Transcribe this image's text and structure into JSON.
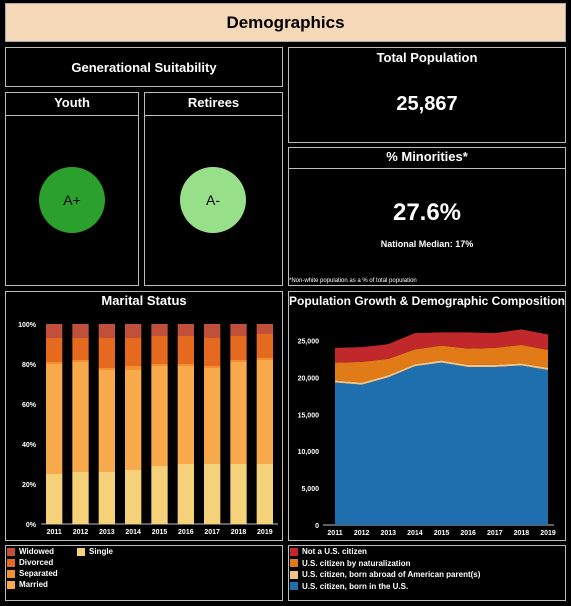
{
  "header": {
    "title": "Demographics"
  },
  "generational": {
    "title": "Generational Suitability",
    "youth": {
      "label": "Youth",
      "grade": "A+",
      "color": "#2ca02c"
    },
    "retirees": {
      "label": "Retirees",
      "grade": "A-",
      "color": "#98df8a"
    }
  },
  "population": {
    "title": "Total  Population",
    "value": "25,867"
  },
  "minorities": {
    "title": "% Minorities*",
    "value": "27.6%",
    "median": "National Median: 17%",
    "footnote": "*Non-white population as a % of total population"
  },
  "marital": {
    "title": "Marital Status",
    "legend": [
      {
        "label": "Widowed",
        "color": "#c0503a"
      },
      {
        "label": "Single",
        "color": "#f5d27a"
      },
      {
        "label": "Divorced",
        "color": "#e5691e"
      },
      {
        "label": "Separated",
        "color": "#f2902f"
      },
      {
        "label": "Married",
        "color": "#f8a94b"
      }
    ]
  },
  "growth": {
    "title": "Population Growth & Demographic Composition",
    "legend": [
      {
        "label": "Not a U.S. citizen",
        "color": "#c0282b"
      },
      {
        "label": "U.S. citizen by naturalization",
        "color": "#e07b18"
      },
      {
        "label": "U.S. citizen, born abroad of American parent(s)",
        "color": "#f2c28a"
      },
      {
        "label": "U.S. citizen, born in the U.S.",
        "color": "#1f6fae"
      }
    ]
  },
  "chart_data": [
    {
      "type": "bar",
      "title": "Marital Status",
      "stacked": true,
      "percent": true,
      "categories": [
        "2011",
        "2012",
        "2013",
        "2014",
        "2015",
        "2016",
        "2017",
        "2018",
        "2019"
      ],
      "yticks": [
        "0%",
        "20%",
        "40%",
        "60%",
        "80%",
        "100%"
      ],
      "ylim": [
        0,
        100
      ],
      "series": [
        {
          "name": "Single",
          "color": "#f5d27a",
          "values": [
            25,
            26,
            26,
            27,
            29,
            30,
            30,
            30,
            30
          ]
        },
        {
          "name": "Married",
          "color": "#f8a94b",
          "values": [
            55,
            55,
            51,
            50,
            50,
            49,
            48,
            51,
            52
          ]
        },
        {
          "name": "Separated",
          "color": "#f2902f",
          "values": [
            1,
            1,
            1,
            2,
            1,
            1,
            1,
            1,
            1
          ]
        },
        {
          "name": "Divorced",
          "color": "#e5691e",
          "values": [
            12,
            11,
            15,
            14,
            14,
            14,
            14,
            12,
            12
          ]
        },
        {
          "name": "Widowed",
          "color": "#c0503a",
          "values": [
            7,
            7,
            7,
            7,
            6,
            6,
            7,
            6,
            5
          ]
        }
      ]
    },
    {
      "type": "area",
      "title": "Population Growth & Demographic Composition",
      "stacked": true,
      "x": [
        "2011",
        "2012",
        "2013",
        "2014",
        "2015",
        "2016",
        "2017",
        "2018",
        "2019"
      ],
      "yticks": [
        "0",
        "5,000",
        "10,000",
        "15,000",
        "20,000",
        "25,000"
      ],
      "ylim": [
        0,
        27500
      ],
      "series": [
        {
          "name": "U.S. citizen, born in the U.S.",
          "color": "#1f6fae",
          "values": [
            19300,
            19000,
            20000,
            21500,
            22000,
            21400,
            21400,
            21600,
            21000
          ]
        },
        {
          "name": "U.S. citizen, born abroad of American parent(s)",
          "color": "#f2c28a",
          "values": [
            300,
            300,
            300,
            300,
            300,
            300,
            300,
            300,
            300
          ]
        },
        {
          "name": "U.S. citizen by naturalization",
          "color": "#e07b18",
          "values": [
            2400,
            2800,
            2200,
            2000,
            2000,
            2200,
            2300,
            2500,
            2400
          ]
        },
        {
          "name": "Not a U.S. citizen",
          "color": "#c0282b",
          "values": [
            2000,
            2000,
            2000,
            2200,
            1800,
            2200,
            2000,
            2100,
            2100
          ]
        }
      ]
    }
  ]
}
